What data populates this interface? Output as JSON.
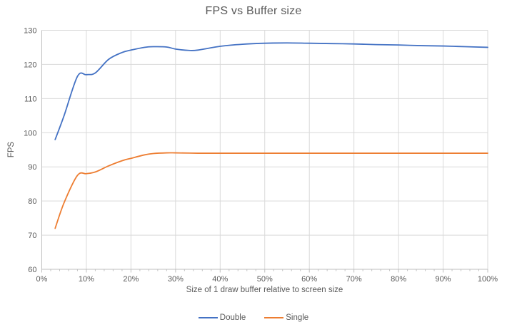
{
  "chart_data": {
    "type": "line",
    "title": "FPS vs Buffer size",
    "xlabel": "Size of 1 draw buffer relative to screen size",
    "ylabel": "FPS",
    "x_unit": "percent",
    "xlim": [
      0,
      100
    ],
    "ylim": [
      60,
      130
    ],
    "x_major_ticks": [
      0,
      10,
      20,
      30,
      40,
      50,
      60,
      70,
      80,
      90,
      100
    ],
    "x_tick_labels": [
      "0%",
      "10%",
      "20%",
      "30%",
      "40%",
      "50%",
      "60%",
      "70%",
      "80%",
      "90%",
      "100%"
    ],
    "x_minor_tick_step": 2,
    "y_ticks": [
      60,
      70,
      80,
      90,
      100,
      110,
      120,
      130
    ],
    "grid": true,
    "smoothed_lines": true,
    "legend_position": "bottom",
    "styles": {
      "grid_color": "#d9d9d9",
      "axis_line_color": "#bfbfbf",
      "tick_color": "#bfbfbf",
      "text_color": "#595959",
      "line_width": 1.8
    },
    "series": [
      {
        "name": "Double",
        "color": "#4472c4",
        "x": [
          3,
          5,
          8,
          10,
          12,
          15,
          18,
          20,
          23,
          25,
          28,
          30,
          33,
          35,
          40,
          45,
          50,
          55,
          60,
          65,
          70,
          75,
          80,
          85,
          90,
          95,
          100
        ],
        "y": [
          98,
          105,
          116.5,
          117,
          117.5,
          121.5,
          123.5,
          124.2,
          125,
          125.2,
          125.1,
          124.5,
          124.1,
          124.2,
          125.3,
          125.9,
          126.2,
          126.3,
          126.2,
          126.1,
          126,
          125.8,
          125.7,
          125.5,
          125.4,
          125.2,
          125
        ]
      },
      {
        "name": "Single",
        "color": "#ed7d31",
        "x": [
          3,
          5,
          8,
          10,
          12,
          15,
          18,
          20,
          23,
          25,
          28,
          30,
          35,
          40,
          45,
          50,
          55,
          60,
          65,
          70,
          75,
          80,
          85,
          90,
          95,
          100
        ],
        "y": [
          72,
          79.5,
          87.5,
          88,
          88.5,
          90.3,
          91.8,
          92.5,
          93.5,
          93.9,
          94.1,
          94.1,
          94,
          94,
          94,
          94,
          94,
          94,
          94,
          94,
          94,
          94,
          94,
          94,
          94,
          94
        ]
      }
    ]
  }
}
